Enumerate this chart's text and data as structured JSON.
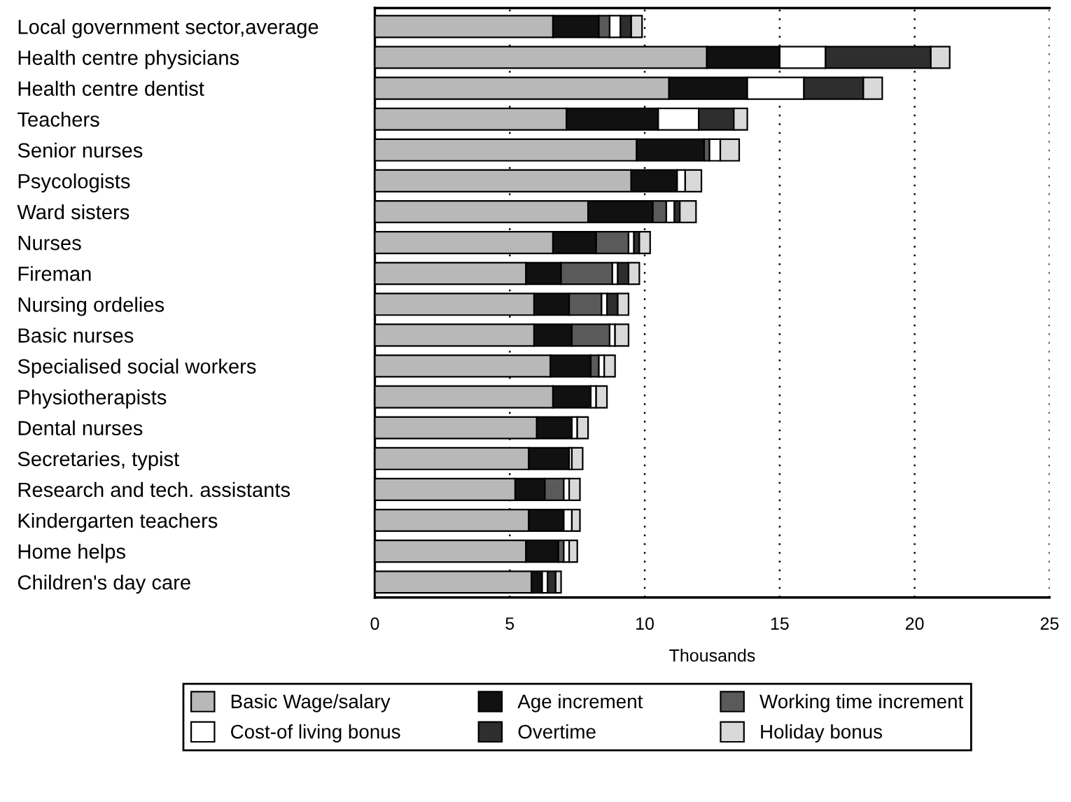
{
  "chart_data": {
    "type": "bar",
    "orientation": "horizontal",
    "stacked": true,
    "xlabel": "Thousands",
    "xlim": [
      0,
      25
    ],
    "xticks": [
      0,
      5,
      10,
      15,
      20,
      25
    ],
    "grid": "x",
    "legend": "bottom",
    "categories": [
      "Local government sector,average",
      "Health centre physicians",
      "Health centre dentist",
      "Teachers",
      "Senior nurses",
      "Psycologists",
      "Ward sisters",
      "Nurses",
      "Fireman",
      "Nursing ordelies",
      "Basic nurses",
      "Specialised social workers",
      "Physiotherapists",
      "Dental nurses",
      "Secretaries, typist",
      "Research and tech. assistants",
      "Kindergarten teachers",
      "Home helps",
      "Children's day care"
    ],
    "series": [
      {
        "name": "Basic Wage/salary",
        "color": "#b8b8b8",
        "values": [
          6.6,
          12.3,
          10.9,
          7.1,
          9.7,
          9.5,
          7.9,
          6.6,
          5.6,
          5.9,
          5.9,
          6.5,
          6.6,
          6.0,
          5.7,
          5.2,
          5.7,
          5.6,
          5.8
        ]
      },
      {
        "name": "Age increment",
        "color": "#111111",
        "values": [
          1.7,
          2.7,
          2.9,
          3.4,
          2.5,
          1.7,
          2.4,
          1.6,
          1.3,
          1.3,
          1.4,
          1.5,
          1.4,
          1.3,
          1.5,
          1.1,
          1.3,
          1.2,
          0.4
        ]
      },
      {
        "name": "Working time increment",
        "color": "#5a5a5a",
        "values": [
          0.4,
          0,
          0,
          0,
          0.2,
          0,
          0.5,
          1.2,
          1.9,
          1.2,
          1.4,
          0.3,
          0,
          0,
          0,
          0.7,
          0,
          0.2,
          0
        ]
      },
      {
        "name": "Cost-of living bonus",
        "color": "#ffffff",
        "values": [
          0.4,
          1.7,
          2.1,
          1.5,
          0.4,
          0.3,
          0.3,
          0.2,
          0.2,
          0.2,
          0.2,
          0.2,
          0.2,
          0.2,
          0.1,
          0.2,
          0.3,
          0.2,
          0.2
        ]
      },
      {
        "name": "Overtime",
        "color": "#2e2e2e",
        "values": [
          0.4,
          3.9,
          2.2,
          1.3,
          0,
          0,
          0.2,
          0.2,
          0.4,
          0.4,
          0,
          0,
          0,
          0,
          0,
          0,
          0,
          0,
          0.3
        ]
      },
      {
        "name": "Holiday bonus",
        "color": "#d9d9d9",
        "values": [
          0.4,
          0.7,
          0.7,
          0.5,
          0.7,
          0.6,
          0.6,
          0.4,
          0.4,
          0.4,
          0.5,
          0.4,
          0.4,
          0.4,
          0.4,
          0.4,
          0.3,
          0.3,
          0.2
        ]
      }
    ]
  }
}
